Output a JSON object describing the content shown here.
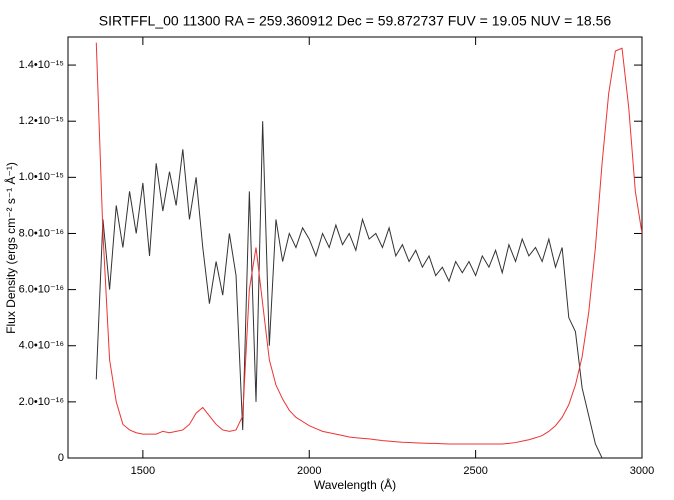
{
  "chart_data": {
    "type": "line",
    "title": "SIRTFFL_00 11300 RA = 259.360912 Dec =  59.872737 FUV = 19.05 NUV = 18.56",
    "xlabel": "Wavelength (Å)",
    "ylabel": "Flux Density (ergs cm⁻² s⁻¹ Å⁻¹)",
    "xlim": [
      1275,
      3000
    ],
    "xticks": [
      1500,
      2000,
      2500,
      3000
    ],
    "ylim": [
      0,
      1.5e-15
    ],
    "yticks": [
      0,
      {
        "value": 2e-16,
        "label": "2.0•10⁻¹⁶"
      },
      {
        "value": 4e-16,
        "label": "4.0•10⁻¹⁶"
      },
      {
        "value": 6e-16,
        "label": "6.0•10⁻¹⁶"
      },
      {
        "value": 8e-16,
        "label": "8.0•10⁻¹⁶"
      },
      {
        "value": 1e-15,
        "label": "1.0•10⁻¹⁵"
      },
      {
        "value": 1.2e-15,
        "label": "1.2•10⁻¹⁵"
      },
      {
        "value": 1.4e-15,
        "label": "1.4•10⁻¹⁵"
      }
    ],
    "x": [
      1360,
      1380,
      1400,
      1420,
      1440,
      1460,
      1480,
      1500,
      1520,
      1540,
      1560,
      1580,
      1600,
      1620,
      1640,
      1660,
      1680,
      1700,
      1720,
      1740,
      1760,
      1780,
      1800,
      1820,
      1840,
      1860,
      1880,
      1900,
      1920,
      1940,
      1960,
      1980,
      2000,
      2020,
      2040,
      2060,
      2080,
      2100,
      2120,
      2140,
      2160,
      2180,
      2200,
      2220,
      2240,
      2260,
      2280,
      2300,
      2320,
      2340,
      2360,
      2380,
      2400,
      2420,
      2440,
      2460,
      2480,
      2500,
      2520,
      2540,
      2560,
      2580,
      2600,
      2620,
      2640,
      2660,
      2680,
      2700,
      2720,
      2740,
      2760,
      2780,
      2800,
      2820,
      2840,
      2860,
      2880,
      2900,
      2920,
      2940,
      2960,
      2980,
      3000
    ],
    "series": [
      {
        "color": "#333333",
        "values": [
          2.8e-16,
          8.5e-16,
          6e-16,
          9e-16,
          7.5e-16,
          9.5e-16,
          8e-16,
          9.8e-16,
          7.2e-16,
          1.05e-15,
          8.8e-16,
          1.02e-15,
          9e-16,
          1.1e-15,
          8.5e-16,
          1e-15,
          7.5e-16,
          5.5e-16,
          7e-16,
          5.8e-16,
          8e-16,
          6.5e-16,
          1e-16,
          9.5e-16,
          2e-16,
          1.2e-15,
          4e-16,
          8.5e-16,
          7e-16,
          8e-16,
          7.5e-16,
          8.2e-16,
          7.8e-16,
          7.2e-16,
          8e-16,
          7.5e-16,
          8.3e-16,
          7.6e-16,
          8e-16,
          7.4e-16,
          8.5e-16,
          7.8e-16,
          8e-16,
          7.5e-16,
          8.2e-16,
          7.2e-16,
          7.6e-16,
          7e-16,
          7.4e-16,
          6.8e-16,
          7.2e-16,
          6.5e-16,
          6.8e-16,
          6.3e-16,
          7e-16,
          6.6e-16,
          7e-16,
          6.5e-16,
          7.2e-16,
          6.8e-16,
          7.4e-16,
          6.6e-16,
          7.6e-16,
          7e-16,
          7.8e-16,
          7.2e-16,
          7.5e-16,
          7e-16,
          7.8e-16,
          6.8e-16,
          7.5e-16,
          5e-16,
          4.5e-16,
          2.5e-16,
          1.5e-16,
          5e-17,
          0,
          null,
          null,
          null,
          null,
          null,
          null
        ]
      },
      {
        "color": "#ee3333",
        "values": [
          1.48e-15,
          8e-16,
          3.5e-16,
          2e-16,
          1.2e-16,
          1e-16,
          9e-17,
          8.5e-17,
          8.5e-17,
          8.5e-17,
          9.5e-17,
          9e-17,
          9.5e-17,
          1e-16,
          1.2e-16,
          1.6e-16,
          1.8e-16,
          1.5e-16,
          1.2e-16,
          1e-16,
          9.5e-17,
          1e-16,
          1.5e-16,
          6e-16,
          7.5e-16,
          5.5e-16,
          3.5e-16,
          2.6e-16,
          2.1e-16,
          1.7e-16,
          1.45e-16,
          1.3e-16,
          1.15e-16,
          1.05e-16,
          9.5e-17,
          9e-17,
          8.5e-17,
          8e-17,
          7.5e-17,
          7.2e-17,
          7e-17,
          6.8e-17,
          6.5e-17,
          6.2e-17,
          6e-17,
          5.8e-17,
          5.6e-17,
          5.5e-17,
          5.4e-17,
          5.3e-17,
          5.2e-17,
          5.2e-17,
          5.1e-17,
          5e-17,
          5e-17,
          5e-17,
          5e-17,
          5e-17,
          5e-17,
          5e-17,
          5e-17,
          5e-17,
          5.2e-17,
          5.5e-17,
          6e-17,
          6.5e-17,
          7.2e-17,
          8e-17,
          9.5e-17,
          1.15e-16,
          1.45e-16,
          1.9e-16,
          2.6e-16,
          3.6e-16,
          5.2e-16,
          7.5e-16,
          1.05e-15,
          1.3e-15,
          1.45e-15,
          1.46e-15,
          1.25e-15,
          9.5e-16,
          8e-16
        ]
      }
    ]
  }
}
